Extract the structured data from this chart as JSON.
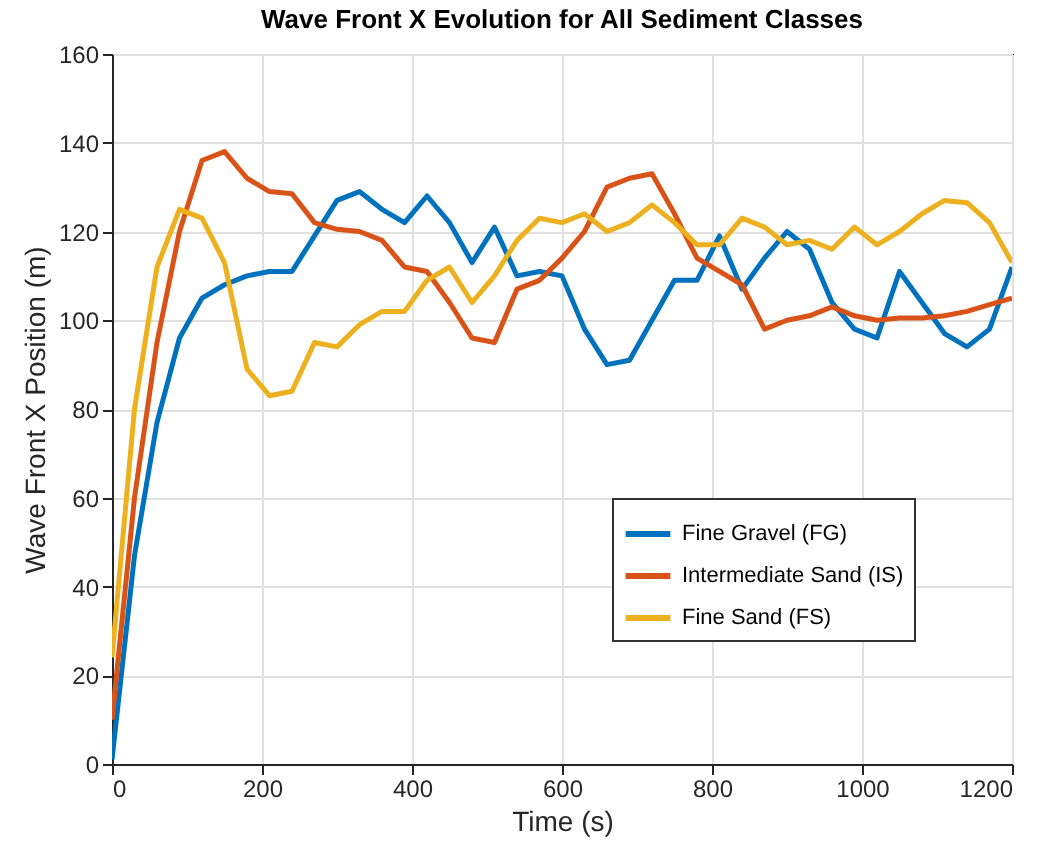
{
  "chart_data": {
    "type": "line",
    "title": "Wave Front X Evolution for All Sediment Classes",
    "xlabel": "Time (s)",
    "ylabel": "Wave Front X Position (m)",
    "x": [
      0,
      30,
      60,
      90,
      120,
      150,
      180,
      210,
      240,
      270,
      300,
      330,
      360,
      390,
      420,
      450,
      480,
      510,
      540,
      570,
      600,
      630,
      660,
      690,
      720,
      750,
      780,
      810,
      840,
      870,
      900,
      930,
      960,
      990,
      1020,
      1050,
      1080,
      1110,
      1140,
      1170,
      1200
    ],
    "series": [
      {
        "name": "Fine Gravel (FG)",
        "color": "#0072bd",
        "values": [
          1,
          47,
          77,
          96,
          105,
          108,
          110,
          111,
          111,
          119,
          127,
          129,
          125,
          122,
          128,
          122,
          113,
          121,
          110,
          111,
          110,
          98,
          90,
          91,
          100,
          109,
          109,
          119,
          107,
          114,
          120,
          116,
          104,
          98,
          96,
          111,
          104,
          97,
          94,
          98,
          112
        ]
      },
      {
        "name": "Intermediate Sand (IS)",
        "color": "#d95319",
        "values": [
          10,
          60,
          95,
          120,
          136,
          138,
          132,
          129,
          128.5,
          122,
          120.5,
          120,
          118,
          112,
          111,
          104,
          96,
          95,
          107,
          109,
          114,
          120,
          130,
          132,
          133,
          124,
          114,
          111,
          108,
          98,
          100,
          101,
          103,
          101,
          100,
          100.5,
          100.5,
          101,
          102,
          103.5,
          105
        ]
      },
      {
        "name": "Fine Sand (FS)",
        "color": "#edb120",
        "values": [
          24,
          80,
          112,
          125,
          123,
          113,
          89,
          83,
          84,
          95,
          94,
          99,
          102,
          102,
          109,
          112,
          104,
          110,
          118,
          123,
          122,
          124,
          120,
          122,
          126,
          122,
          117,
          117,
          123,
          121,
          117,
          118,
          116,
          121,
          117,
          120,
          124,
          127,
          126.5,
          122,
          113
        ]
      }
    ],
    "xlim": [
      0,
      1200
    ],
    "xticks": [
      0,
      200,
      400,
      600,
      800,
      1000,
      1200
    ],
    "ylim": [
      0,
      160
    ],
    "yticks": [
      0,
      20,
      40,
      60,
      80,
      100,
      120,
      140,
      160
    ],
    "grid": true,
    "legend": "bottom right",
    "line_style": "solid",
    "marker": "none"
  }
}
